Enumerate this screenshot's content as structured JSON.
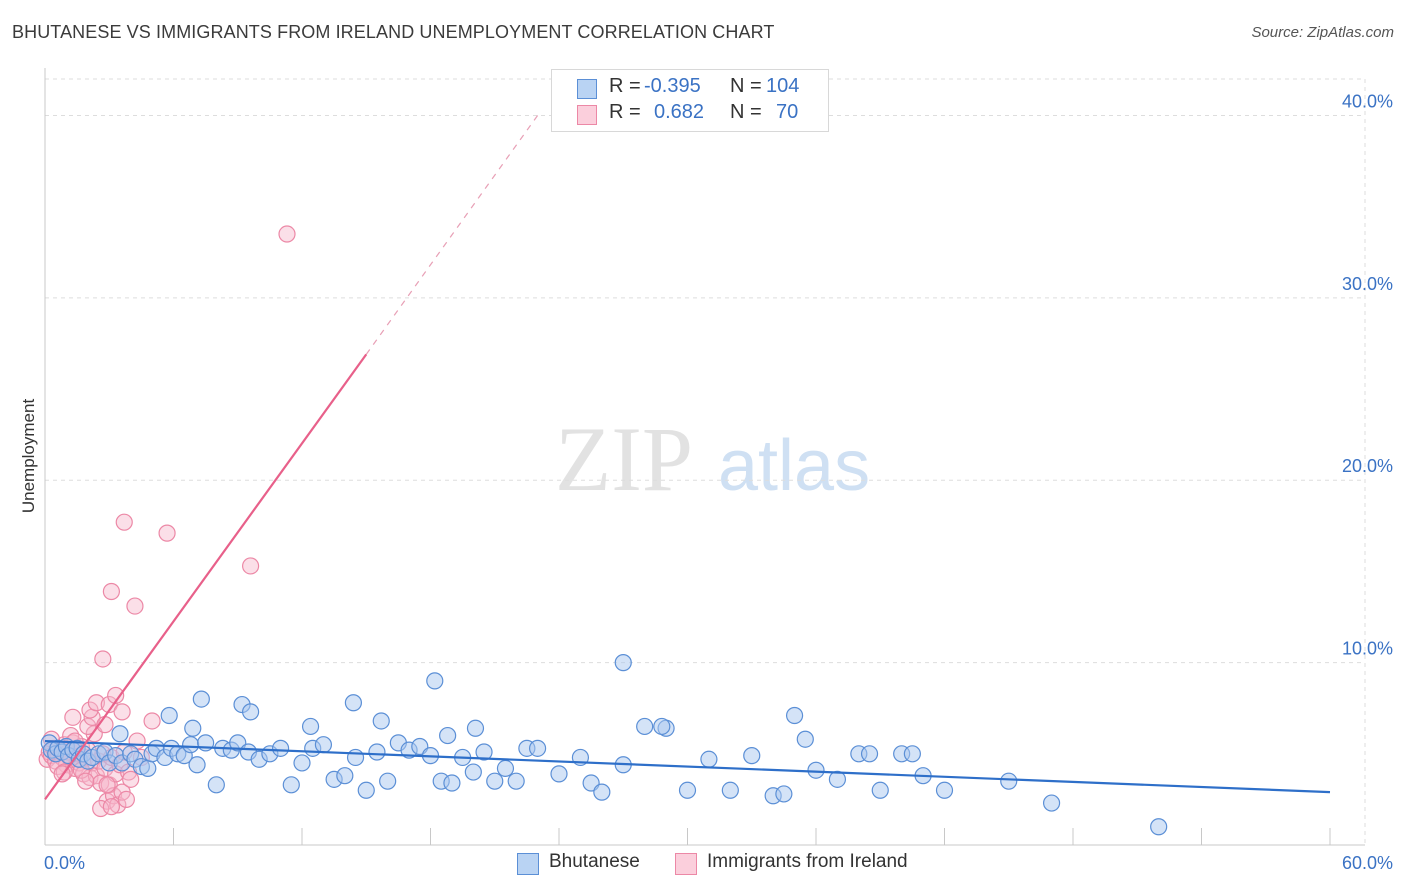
{
  "title": "BHUTANESE VS IMMIGRANTS FROM IRELAND UNEMPLOYMENT CORRELATION CHART",
  "source": "Source: ZipAtlas.com",
  "watermark": {
    "zip": "ZIP",
    "atlas": "atlas"
  },
  "legend": {
    "rows": [
      {
        "r_label": "R =",
        "r_value": "-0.395",
        "n_label": "N =",
        "n_value": "104"
      },
      {
        "r_label": "R =",
        "r_value": "0.682",
        "n_label": "N =",
        "n_value": "70"
      }
    ]
  },
  "bottom_legend": [
    "Bhutanese",
    "Immigrants from Ireland"
  ],
  "colors": {
    "blue_fill": "#a9c8ef",
    "blue_stroke": "#5b8fd6",
    "blue_line": "#2e6fc9",
    "pink_fill": "#f6b8cb",
    "pink_stroke": "#ec88a6",
    "pink_line": "#e8608a",
    "axis_text": "#3a72c4",
    "grid": "#dddddd"
  },
  "chart_data": {
    "type": "scatter",
    "title": "BHUTANESE VS IMMIGRANTS FROM IRELAND UNEMPLOYMENT CORRELATION CHART",
    "xlabel": "",
    "ylabel": "Unemployment",
    "xlim": [
      0,
      60
    ],
    "ylim": [
      0,
      42
    ],
    "x_tick_labels": [
      "0.0%",
      "60.0%"
    ],
    "y_ticks": [
      10,
      20,
      30,
      40
    ],
    "y_tick_labels": [
      "10.0%",
      "20.0%",
      "30.0%",
      "40.0%"
    ],
    "grid": true,
    "series": [
      {
        "name": "Bhutanese",
        "R": -0.395,
        "N": 104,
        "trend": {
          "x": [
            0,
            60
          ],
          "y": [
            5.7,
            2.9
          ],
          "style": "solid"
        },
        "points": [
          [
            0.2,
            5.6
          ],
          [
            0.3,
            5.2
          ],
          [
            0.5,
            5.0
          ],
          [
            0.6,
            5.3
          ],
          [
            0.8,
            5.1
          ],
          [
            1.0,
            5.4
          ],
          [
            1.1,
            4.9
          ],
          [
            1.3,
            5.2
          ],
          [
            1.5,
            5.3
          ],
          [
            1.6,
            4.7
          ],
          [
            1.8,
            5.0
          ],
          [
            2.0,
            4.6
          ],
          [
            2.2,
            4.8
          ],
          [
            2.5,
            5.0
          ],
          [
            2.8,
            5.1
          ],
          [
            3.0,
            4.5
          ],
          [
            3.3,
            4.9
          ],
          [
            3.6,
            4.5
          ],
          [
            4.0,
            5.0
          ],
          [
            4.2,
            4.7
          ],
          [
            4.5,
            4.3
          ],
          [
            4.8,
            4.2
          ],
          [
            5.0,
            5.0
          ],
          [
            5.2,
            5.3
          ],
          [
            5.6,
            4.8
          ],
          [
            5.9,
            5.3
          ],
          [
            6.2,
            5.0
          ],
          [
            6.5,
            4.9
          ],
          [
            6.8,
            5.5
          ],
          [
            7.1,
            4.4
          ],
          [
            7.5,
            5.6
          ],
          [
            8.0,
            3.3
          ],
          [
            8.3,
            5.3
          ],
          [
            8.7,
            5.2
          ],
          [
            9.0,
            5.6
          ],
          [
            9.5,
            5.1
          ],
          [
            10.0,
            4.7
          ],
          [
            10.5,
            5.0
          ],
          [
            11.0,
            5.3
          ],
          [
            11.5,
            3.3
          ],
          [
            12.0,
            4.5
          ],
          [
            12.5,
            5.3
          ],
          [
            13.0,
            5.5
          ],
          [
            13.5,
            3.6
          ],
          [
            14.0,
            3.8
          ],
          [
            14.5,
            4.8
          ],
          [
            15.0,
            3.0
          ],
          [
            15.5,
            5.1
          ],
          [
            16.0,
            3.5
          ],
          [
            16.5,
            5.6
          ],
          [
            17.0,
            5.2
          ],
          [
            17.5,
            5.4
          ],
          [
            18.0,
            4.9
          ],
          [
            18.5,
            3.5
          ],
          [
            19.0,
            3.4
          ],
          [
            19.5,
            4.8
          ],
          [
            20.0,
            4.0
          ],
          [
            20.5,
            5.1
          ],
          [
            21.0,
            3.5
          ],
          [
            21.5,
            4.2
          ],
          [
            22.0,
            3.5
          ],
          [
            22.5,
            5.3
          ],
          [
            23.0,
            5.3
          ],
          [
            24.0,
            3.9
          ],
          [
            25.0,
            4.8
          ],
          [
            25.5,
            3.4
          ],
          [
            26.0,
            2.9
          ],
          [
            27.0,
            4.4
          ],
          [
            28.0,
            6.5
          ],
          [
            29.0,
            6.4
          ],
          [
            30.0,
            3.0
          ],
          [
            31.0,
            4.7
          ],
          [
            32.0,
            3.0
          ],
          [
            33.0,
            4.9
          ],
          [
            34.0,
            2.7
          ],
          [
            34.5,
            2.8
          ],
          [
            35.0,
            7.1
          ],
          [
            35.5,
            5.8
          ],
          [
            36.0,
            4.1
          ],
          [
            37.0,
            3.6
          ],
          [
            38.0,
            5.0
          ],
          [
            38.5,
            5.0
          ],
          [
            39.0,
            3.0
          ],
          [
            40.0,
            5.0
          ],
          [
            40.5,
            5.0
          ],
          [
            41.0,
            3.8
          ],
          [
            42.0,
            3.0
          ],
          [
            45.0,
            3.5
          ],
          [
            47.0,
            2.3
          ],
          [
            52.0,
            1.0
          ],
          [
            3.5,
            6.1
          ],
          [
            5.8,
            7.1
          ],
          [
            6.9,
            6.4
          ],
          [
            7.3,
            8.0
          ],
          [
            9.2,
            7.7
          ],
          [
            9.6,
            7.3
          ],
          [
            12.4,
            6.5
          ],
          [
            14.4,
            7.8
          ],
          [
            15.7,
            6.8
          ],
          [
            18.8,
            6.0
          ],
          [
            20.1,
            6.4
          ],
          [
            28.8,
            6.5
          ],
          [
            18.2,
            9.0
          ],
          [
            27.0,
            10.0
          ]
        ]
      },
      {
        "name": "Immigrants from Ireland",
        "R": 0.682,
        "N": 70,
        "trend": {
          "x": [
            0,
            15
          ],
          "y": [
            2.5,
            26.9
          ],
          "style": "solid",
          "dashed_extension_to": [
            23,
            40
          ]
        },
        "points": [
          [
            0.1,
            4.7
          ],
          [
            0.2,
            5.1
          ],
          [
            0.3,
            4.9
          ],
          [
            0.4,
            5.3
          ],
          [
            0.5,
            4.6
          ],
          [
            0.6,
            5.0
          ],
          [
            0.7,
            5.2
          ],
          [
            0.8,
            4.8
          ],
          [
            0.9,
            5.5
          ],
          [
            1.0,
            4.4
          ],
          [
            1.1,
            5.1
          ],
          [
            1.2,
            4.7
          ],
          [
            1.3,
            5.6
          ],
          [
            1.4,
            4.2
          ],
          [
            1.5,
            5.0
          ],
          [
            1.6,
            4.5
          ],
          [
            1.7,
            5.4
          ],
          [
            1.8,
            3.9
          ],
          [
            1.9,
            4.8
          ],
          [
            2.0,
            5.2
          ],
          [
            2.1,
            3.7
          ],
          [
            2.2,
            4.5
          ],
          [
            2.3,
            6.1
          ],
          [
            2.4,
            3.8
          ],
          [
            2.5,
            4.6
          ],
          [
            2.6,
            3.4
          ],
          [
            2.7,
            5.0
          ],
          [
            2.8,
            4.2
          ],
          [
            2.9,
            2.4
          ],
          [
            3.0,
            3.3
          ],
          [
            3.1,
            4.8
          ],
          [
            3.2,
            2.7
          ],
          [
            3.3,
            3.9
          ],
          [
            3.4,
            2.2
          ],
          [
            3.5,
            4.4
          ],
          [
            3.6,
            2.9
          ],
          [
            3.7,
            5.1
          ],
          [
            3.8,
            2.5
          ],
          [
            3.9,
            4.0
          ],
          [
            4.0,
            3.6
          ],
          [
            0.3,
            5.8
          ],
          [
            0.6,
            4.3
          ],
          [
            0.9,
            4.0
          ],
          [
            1.2,
            6.0
          ],
          [
            1.4,
            5.7
          ],
          [
            1.7,
            4.1
          ],
          [
            2.0,
            6.5
          ],
          [
            2.2,
            7.0
          ],
          [
            2.6,
            2.0
          ],
          [
            3.1,
            2.1
          ],
          [
            1.3,
            7.0
          ],
          [
            2.1,
            7.4
          ],
          [
            2.4,
            7.8
          ],
          [
            2.8,
            6.6
          ],
          [
            3.0,
            7.7
          ],
          [
            3.3,
            8.2
          ],
          [
            3.6,
            7.3
          ],
          [
            4.3,
            5.7
          ],
          [
            4.5,
            4.8
          ],
          [
            5.0,
            6.8
          ],
          [
            2.7,
            10.2
          ],
          [
            3.1,
            13.9
          ],
          [
            3.7,
            17.7
          ],
          [
            4.2,
            13.1
          ],
          [
            5.7,
            17.1
          ],
          [
            9.6,
            15.3
          ],
          [
            11.3,
            33.5
          ],
          [
            2.9,
            3.3
          ],
          [
            1.9,
            3.5
          ],
          [
            0.8,
            3.9
          ]
        ]
      }
    ]
  }
}
